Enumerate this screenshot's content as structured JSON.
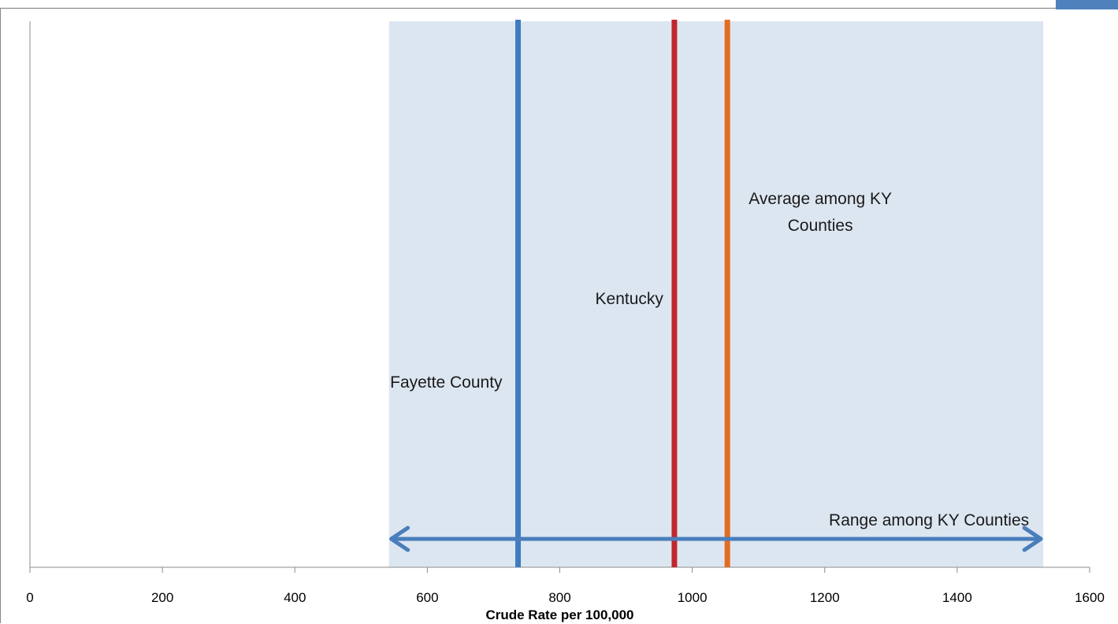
{
  "chart_data": {
    "type": "line",
    "xlabel": "Crude Rate per 100,000",
    "xlim": [
      0,
      1600
    ],
    "xticks": [
      0,
      200,
      400,
      600,
      800,
      1000,
      1200,
      1400,
      1600
    ],
    "xtick_labels": [
      "0",
      "200",
      "400",
      "600",
      "800",
      "1000",
      "1200",
      "1400",
      "1600"
    ],
    "range": {
      "label": "Range among KY Counties",
      "min": 542,
      "max": 1530,
      "color": "#4a7ebb",
      "band_color": "#dce6f1"
    },
    "markers": [
      {
        "name": "fayette",
        "label_lines": [
          "Fayette County"
        ],
        "value": 737,
        "color": "#3f7cc0"
      },
      {
        "name": "kentucky",
        "label_lines": [
          "Kentucky"
        ],
        "value": 973,
        "color": "#c0262d"
      },
      {
        "name": "average",
        "label_lines": [
          "Average among KY",
          "Counties"
        ],
        "value": 1053,
        "color": "#e46c21"
      }
    ]
  }
}
